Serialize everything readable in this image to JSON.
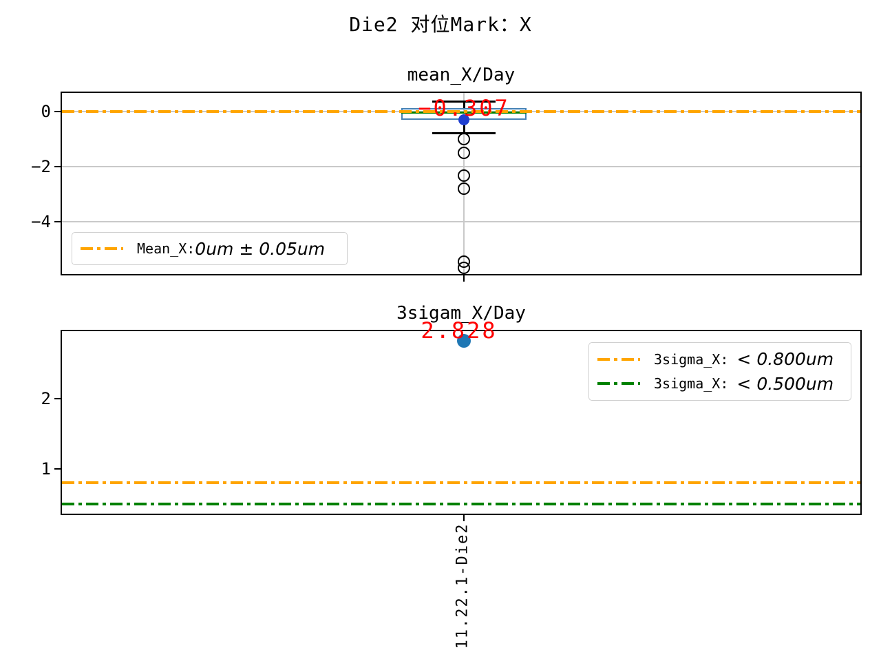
{
  "figure": {
    "title": "Die2 对位Mark：X",
    "background": "#ffffff"
  },
  "colors": {
    "orange": "#ffa500",
    "green": "#008000",
    "box_edge": "#4682b4",
    "median": "#008000",
    "whisker": "#000000",
    "mean_marker": "#1f3fd0",
    "scatter_point": "#1f77b4",
    "annotation_red": "#ff0000",
    "grid": "#c9c9c9",
    "spine": "#000000"
  },
  "chart_data": [
    {
      "type": "box",
      "title": "mean_X/Day",
      "categories": [
        "11.22.1-Die2"
      ],
      "xlabel": "",
      "ylabel": "",
      "ylim": [
        -5.9,
        0.68
      ],
      "grid": true,
      "yticks": [
        {
          "label": "0",
          "value": 0
        },
        {
          "label": "−2",
          "value": -2
        },
        {
          "label": "−4",
          "value": -4
        }
      ],
      "series": [
        {
          "name": "11.22.1-Die2",
          "whisker_high": 0.375,
          "q3": 0.125,
          "median": -0.025,
          "q1": -0.3,
          "whisker_low": -0.775,
          "mean": -0.307,
          "outliers": [
            -1.0,
            -1.5,
            -2.33,
            -2.8,
            -5.45,
            -5.68
          ]
        }
      ],
      "annotation": {
        "text": "−0.307",
        "value": -0.307
      },
      "ref_lines": [
        {
          "value": 0,
          "color": "#ffa500",
          "style": "dashdot"
        }
      ],
      "legend": {
        "position": "lower left",
        "entries": [
          {
            "prefix": "Mean_X:",
            "math": "0um ± 0.05um",
            "color": "#ffa500"
          }
        ]
      }
    },
    {
      "type": "scatter",
      "title": "3sigam_X/Day",
      "categories": [
        "11.22.1-Die2"
      ],
      "xlabel": "",
      "ylabel": "",
      "ylim": [
        0.36,
        2.96
      ],
      "grid": false,
      "yticks": [
        {
          "label": "2",
          "value": 2
        },
        {
          "label": "1",
          "value": 1
        }
      ],
      "series": [
        {
          "name": "11.22.1-Die2",
          "values": [
            2.828
          ]
        }
      ],
      "annotation": {
        "text": "2.828",
        "value": 2.828
      },
      "ref_lines": [
        {
          "value": 0.8,
          "color": "#ffa500",
          "style": "dashdot"
        },
        {
          "value": 0.5,
          "color": "#008000",
          "style": "dashdot"
        }
      ],
      "legend": {
        "position": "upper right",
        "entries": [
          {
            "prefix": "3sigma_X: ",
            "math": "< 0.800um",
            "color": "#ffa500"
          },
          {
            "prefix": "3sigma_X: ",
            "math": "< 0.500um",
            "color": "#008000"
          }
        ]
      }
    }
  ]
}
